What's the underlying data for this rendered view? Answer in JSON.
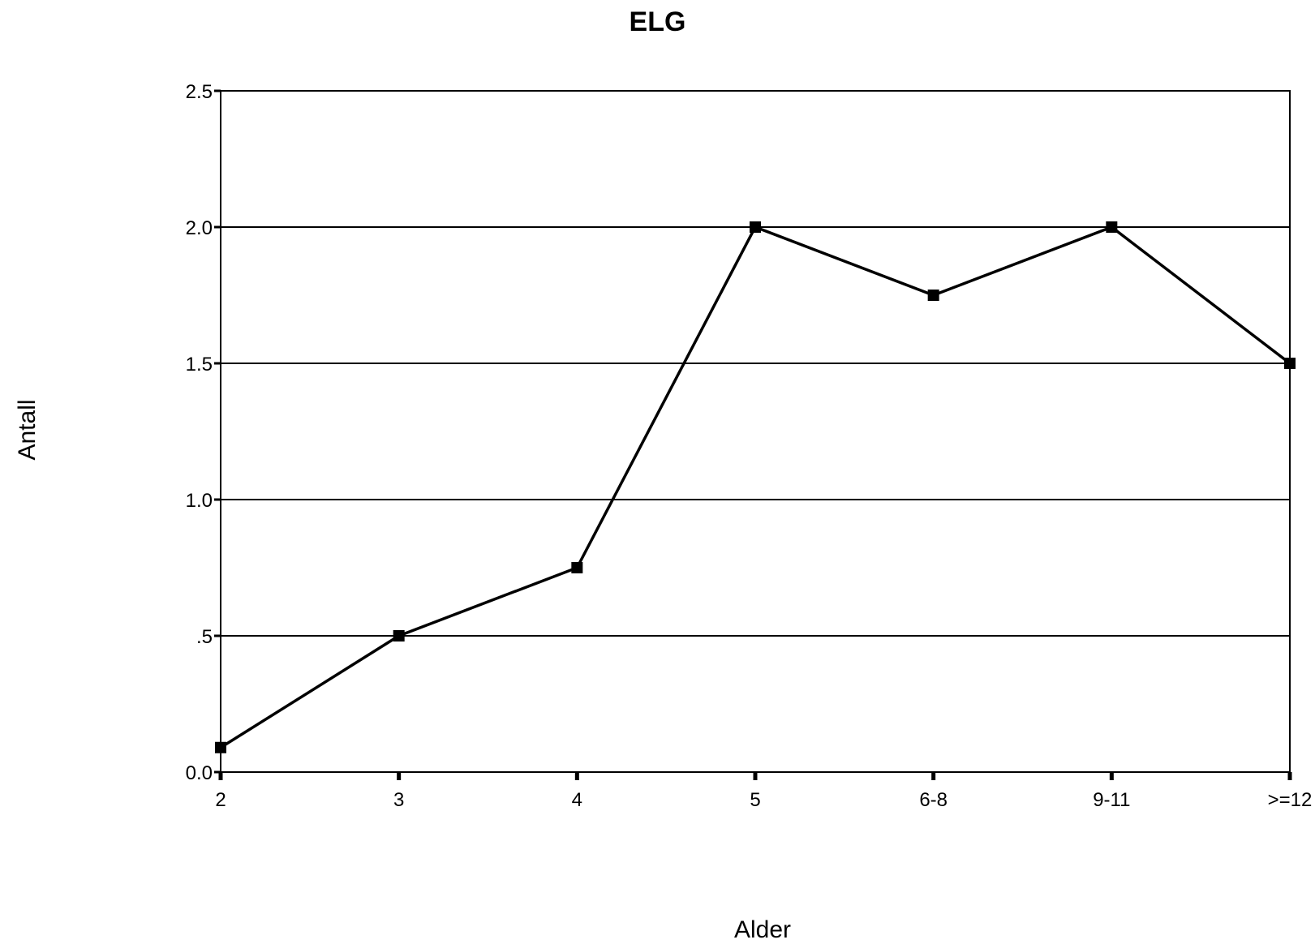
{
  "chart_data": {
    "type": "line",
    "title": "ELG",
    "xlabel": "Alder",
    "ylabel": "Antall",
    "categories": [
      "2",
      "3",
      "4",
      "5",
      "6-8",
      "9-11",
      ">=12"
    ],
    "series": [
      {
        "values": [
          0.09,
          0.5,
          0.75,
          2.0,
          1.75,
          2.0,
          1.5
        ]
      }
    ],
    "ylim": [
      0,
      2.5
    ],
    "yticks": [
      0,
      0.5,
      1.0,
      1.5,
      2.0,
      2.5
    ],
    "ytick_labels": [
      "0.0",
      ".5",
      "1.0",
      "1.5",
      "2.0",
      "2.5"
    ],
    "grid": "horizontal",
    "legend": "none",
    "colors": {
      "line": "#000000",
      "marker": "#000000",
      "grid": "#000000"
    }
  }
}
